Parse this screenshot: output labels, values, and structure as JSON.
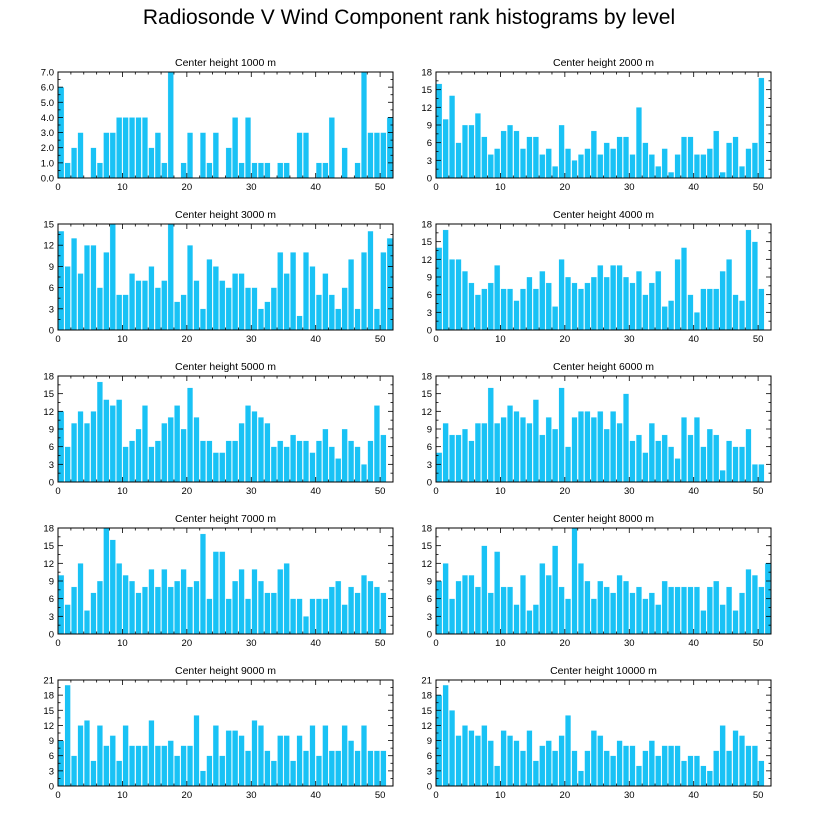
{
  "title": "Radiosonde V Wind Component rank histograms by level",
  "colors": {
    "bar": "#19c2f5",
    "bar_edge": "#ffffff",
    "axis": "#000000"
  },
  "chart_data": [
    {
      "type": "bar",
      "title": "Center height 1000 m",
      "xlim": [
        0,
        52
      ],
      "ylim": [
        0,
        7
      ],
      "xticks": [
        "0",
        "10",
        "20",
        "30",
        "40",
        "50"
      ],
      "yticks": [
        "0.0",
        "1.0",
        "2.0",
        "3.0",
        "4.0",
        "5.0",
        "6.0",
        "7.0"
      ],
      "values": [
        6,
        1,
        2,
        3,
        0,
        2,
        1,
        3,
        3,
        4,
        4,
        4,
        4,
        4,
        2,
        3,
        1,
        7,
        0,
        1,
        3,
        0,
        3,
        1,
        3,
        0,
        2,
        4,
        1,
        4,
        1,
        1,
        1,
        0,
        1,
        1,
        0,
        3,
        3,
        0,
        1,
        1,
        4,
        0,
        2,
        0,
        1,
        7,
        3,
        3,
        3,
        4
      ]
    },
    {
      "type": "bar",
      "title": "Center height 2000 m",
      "xlim": [
        0,
        52
      ],
      "ylim": [
        0,
        18
      ],
      "xticks": [
        "0",
        "10",
        "20",
        "30",
        "40",
        "50"
      ],
      "yticks": [
        "0",
        "3",
        "6",
        "9",
        "12",
        "15",
        "18"
      ],
      "values": [
        16,
        10,
        14,
        6,
        9,
        9,
        11,
        7,
        4,
        5,
        8,
        9,
        8,
        5,
        7,
        7,
        4,
        5,
        2,
        9,
        5,
        3,
        4,
        5,
        8,
        4,
        6,
        5,
        7,
        7,
        4,
        12,
        6,
        4,
        2,
        5,
        1,
        4,
        7,
        7,
        4,
        4,
        5,
        8,
        1,
        6,
        7,
        2,
        5,
        6,
        17
      ]
    },
    {
      "type": "bar",
      "title": "Center height 3000 m",
      "xlim": [
        0,
        52
      ],
      "ylim": [
        0,
        15
      ],
      "xticks": [
        "0",
        "10",
        "20",
        "30",
        "40",
        "50"
      ],
      "yticks": [
        "0",
        "3",
        "6",
        "9",
        "12",
        "15"
      ],
      "values": [
        14,
        9,
        13,
        8,
        12,
        12,
        6,
        11,
        15,
        5,
        5,
        8,
        7,
        7,
        9,
        6,
        7,
        15,
        4,
        5,
        12,
        7,
        3,
        10,
        9,
        7,
        6,
        8,
        8,
        6,
        6,
        3,
        4,
        6,
        11,
        8,
        11,
        2,
        11,
        9,
        5,
        8,
        5,
        3,
        6,
        10,
        3,
        11,
        14,
        3,
        11,
        13
      ]
    },
    {
      "type": "bar",
      "title": "Center height 4000 m",
      "xlim": [
        0,
        52
      ],
      "ylim": [
        0,
        18
      ],
      "xticks": [
        "0",
        "10",
        "20",
        "30",
        "40",
        "50"
      ],
      "yticks": [
        "0",
        "3",
        "6",
        "9",
        "12",
        "15",
        "18"
      ],
      "values": [
        14,
        17,
        12,
        12,
        10,
        8,
        6,
        7,
        8,
        11,
        7,
        7,
        5,
        7,
        9,
        7,
        10,
        8,
        4,
        12,
        9,
        8,
        7,
        8,
        9,
        11,
        9,
        11,
        11,
        9,
        8,
        10,
        6,
        8,
        10,
        4,
        5,
        12,
        14,
        6,
        3,
        7,
        7,
        7,
        10,
        12,
        6,
        5,
        17,
        15,
        7
      ]
    },
    {
      "type": "bar",
      "title": "Center height 5000 m",
      "xlim": [
        0,
        52
      ],
      "ylim": [
        0,
        18
      ],
      "xticks": [
        "0",
        "10",
        "20",
        "30",
        "40",
        "50"
      ],
      "yticks": [
        "0",
        "3",
        "6",
        "9",
        "12",
        "15",
        "18"
      ],
      "values": [
        12,
        6,
        10,
        12,
        10,
        12,
        17,
        14,
        13,
        14,
        6,
        7,
        9,
        13,
        6,
        7,
        10,
        11,
        13,
        9,
        16,
        11,
        7,
        7,
        5,
        5,
        7,
        7,
        10,
        13,
        12,
        11,
        10,
        6,
        7,
        6,
        8,
        7,
        7,
        5,
        7,
        9,
        6,
        4,
        9,
        7,
        6,
        3,
        7,
        13,
        8
      ]
    },
    {
      "type": "bar",
      "title": "Center height 6000 m",
      "xlim": [
        0,
        52
      ],
      "ylim": [
        0,
        18
      ],
      "xticks": [
        "0",
        "10",
        "20",
        "30",
        "40",
        "50"
      ],
      "yticks": [
        "0",
        "3",
        "6",
        "9",
        "12",
        "15",
        "18"
      ],
      "values": [
        5,
        10,
        8,
        8,
        9,
        7,
        10,
        10,
        16,
        10,
        11,
        13,
        12,
        11,
        10,
        14,
        8,
        11,
        9,
        16,
        6,
        11,
        12,
        12,
        11,
        12,
        9,
        12,
        10,
        15,
        7,
        8,
        5,
        10,
        7,
        8,
        6,
        4,
        11,
        8,
        11,
        6,
        9,
        8,
        2,
        7,
        6,
        6,
        9,
        3,
        3
      ]
    },
    {
      "type": "bar",
      "title": "Center height 7000 m",
      "xlim": [
        0,
        52
      ],
      "ylim": [
        0,
        18
      ],
      "xticks": [
        "0",
        "10",
        "20",
        "30",
        "40",
        "50"
      ],
      "yticks": [
        "0",
        "3",
        "6",
        "9",
        "12",
        "15",
        "18"
      ],
      "values": [
        10,
        5,
        8,
        12,
        4,
        7,
        9,
        18,
        16,
        12,
        10,
        9,
        7,
        8,
        11,
        8,
        11,
        8,
        9,
        11,
        8,
        9,
        17,
        6,
        14,
        14,
        6,
        9,
        11,
        6,
        11,
        9,
        7,
        7,
        11,
        12,
        6,
        6,
        3,
        6,
        6,
        6,
        8,
        9,
        5,
        8,
        7,
        10,
        9,
        8,
        7
      ]
    },
    {
      "type": "bar",
      "title": "Center height 8000 m",
      "xlim": [
        0,
        52
      ],
      "ylim": [
        0,
        18
      ],
      "xticks": [
        "0",
        "10",
        "20",
        "30",
        "40",
        "50"
      ],
      "yticks": [
        "0",
        "3",
        "6",
        "9",
        "12",
        "15",
        "18"
      ],
      "values": [
        9,
        12,
        6,
        9,
        10,
        10,
        8,
        15,
        7,
        14,
        8,
        8,
        5,
        10,
        4,
        5,
        12,
        10,
        15,
        8,
        6,
        18,
        12,
        9,
        6,
        9,
        8,
        7,
        10,
        9,
        7,
        8,
        6,
        7,
        5,
        9,
        8,
        8,
        8,
        8,
        8,
        4,
        8,
        9,
        5,
        8,
        4,
        7,
        11,
        10,
        8,
        12
      ]
    },
    {
      "type": "bar",
      "title": "Center height 9000 m",
      "xlim": [
        0,
        52
      ],
      "ylim": [
        0,
        21
      ],
      "xticks": [
        "0",
        "10",
        "20",
        "30",
        "40",
        "50"
      ],
      "yticks": [
        "0",
        "3",
        "6",
        "9",
        "12",
        "15",
        "18",
        "21"
      ],
      "values": [
        9,
        20,
        6,
        12,
        13,
        5,
        12,
        8,
        10,
        5,
        12,
        8,
        8,
        8,
        13,
        8,
        8,
        9,
        6,
        8,
        8,
        14,
        3,
        6,
        12,
        6,
        11,
        11,
        10,
        7,
        13,
        12,
        7,
        5,
        10,
        10,
        5,
        10,
        7,
        12,
        6,
        12,
        7,
        7,
        12,
        9,
        7,
        12,
        7,
        7,
        7
      ]
    },
    {
      "type": "bar",
      "title": "Center height 10000 m",
      "xlim": [
        0,
        52
      ],
      "ylim": [
        0,
        21
      ],
      "xticks": [
        "0",
        "10",
        "20",
        "30",
        "40",
        "50"
      ],
      "yticks": [
        "0",
        "3",
        "6",
        "9",
        "12",
        "15",
        "18",
        "21"
      ],
      "values": [
        18,
        20,
        15,
        10,
        12,
        11,
        10,
        12,
        9,
        4,
        11,
        10,
        9,
        7,
        11,
        5,
        8,
        9,
        7,
        10,
        14,
        7,
        3,
        7,
        11,
        10,
        7,
        6,
        9,
        8,
        8,
        4,
        7,
        9,
        6,
        8,
        8,
        8,
        5,
        6,
        6,
        4,
        3,
        7,
        12,
        7,
        11,
        10,
        8,
        8,
        5
      ]
    }
  ]
}
